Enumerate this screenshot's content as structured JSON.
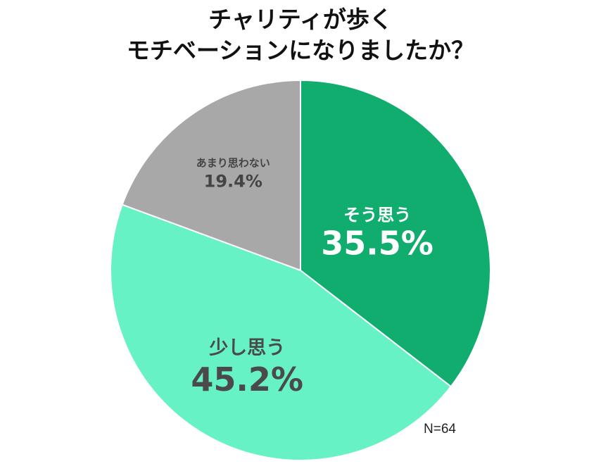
{
  "title": {
    "line1": "チャリティが歩く",
    "line2": "モチベーションになりましたか？"
  },
  "sample_size": "N=64",
  "chart_data": {
    "type": "pie",
    "title": "チャリティが歩く モチベーションになりましたか？",
    "start": "12 o'clock",
    "direction": "clockwise",
    "slices": [
      {
        "label": "そう思う",
        "value": 35.5,
        "value_label": "35.5%",
        "color": "#10ad6e",
        "text_color": "#ffffff"
      },
      {
        "label": "少し思う",
        "value": 45.2,
        "value_label": "45.2%",
        "color": "#66f2c5",
        "text_color": "#4a4a4a"
      },
      {
        "label": "あまり思わない",
        "value": 19.4,
        "value_label": "19.4%",
        "color": "#a8a8a8",
        "text_color": "#444444"
      }
    ],
    "annotation": "N=64"
  }
}
